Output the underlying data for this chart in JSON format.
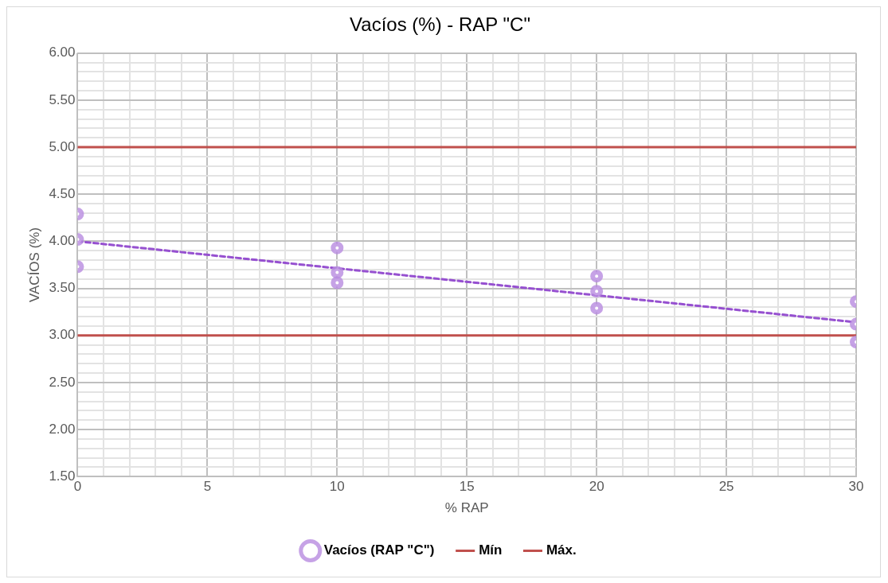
{
  "chart_data": {
    "type": "scatter",
    "title": "Vacíos (%) - RAP \"C\"",
    "xlabel": "% RAP",
    "ylabel": "VACÍOS (%)",
    "xlim": [
      0,
      30
    ],
    "ylim": [
      1.5,
      6
    ],
    "xticks": [
      0,
      {
        "value": 1,
        "label": null
      },
      {
        "value": 2,
        "label": null
      },
      {
        "value": 3,
        "label": null
      },
      {
        "value": 4,
        "label": null
      },
      5,
      {
        "value": 6,
        "label": null
      },
      {
        "value": 7,
        "label": null
      },
      {
        "value": 8,
        "label": null
      },
      {
        "value": 9,
        "label": null
      },
      10,
      {
        "value": 11,
        "label": null
      },
      {
        "value": 12,
        "label": null
      },
      {
        "value": 13,
        "label": null
      },
      {
        "value": 14,
        "label": null
      },
      15,
      {
        "value": 16,
        "label": null
      },
      {
        "value": 17,
        "label": null
      },
      {
        "value": 18,
        "label": null
      },
      {
        "value": 19,
        "label": null
      },
      20,
      {
        "value": 21,
        "label": null
      },
      {
        "value": 22,
        "label": null
      },
      {
        "value": 23,
        "label": null
      },
      {
        "value": 24,
        "label": null
      },
      25,
      {
        "value": 26,
        "label": null
      },
      {
        "value": 27,
        "label": null
      },
      {
        "value": 28,
        "label": null
      },
      {
        "value": 29,
        "label": null
      },
      30
    ],
    "yticks": [
      {
        "value": 1.5,
        "label": "1.50"
      },
      {
        "value": 1.6,
        "label": null
      },
      {
        "value": 1.7,
        "label": null
      },
      {
        "value": 1.8,
        "label": null
      },
      {
        "value": 1.9,
        "label": null
      },
      {
        "value": 2,
        "label": "2.00"
      },
      {
        "value": 2.1,
        "label": null
      },
      {
        "value": 2.2,
        "label": null
      },
      {
        "value": 2.3,
        "label": null
      },
      {
        "value": 2.4,
        "label": null
      },
      {
        "value": 2.5,
        "label": "2.50"
      },
      {
        "value": 2.6,
        "label": null
      },
      {
        "value": 2.7,
        "label": null
      },
      {
        "value": 2.8,
        "label": null
      },
      {
        "value": 2.9,
        "label": null
      },
      {
        "value": 3,
        "label": "3.00"
      },
      {
        "value": 3.1,
        "label": null
      },
      {
        "value": 3.2,
        "label": null
      },
      {
        "value": 3.3,
        "label": null
      },
      {
        "value": 3.4,
        "label": null
      },
      {
        "value": 3.5,
        "label": "3.50"
      },
      {
        "value": 3.6,
        "label": null
      },
      {
        "value": 3.7,
        "label": null
      },
      {
        "value": 3.8,
        "label": null
      },
      {
        "value": 3.9,
        "label": null
      },
      {
        "value": 4,
        "label": "4.00"
      },
      {
        "value": 4.1,
        "label": null
      },
      {
        "value": 4.2,
        "label": null
      },
      {
        "value": 4.3,
        "label": null
      },
      {
        "value": 4.4,
        "label": null
      },
      {
        "value": 4.5,
        "label": "4.50"
      },
      {
        "value": 4.6,
        "label": null
      },
      {
        "value": 4.7,
        "label": null
      },
      {
        "value": 4.8,
        "label": null
      },
      {
        "value": 4.9,
        "label": null
      },
      {
        "value": 5,
        "label": "5.00"
      },
      {
        "value": 5.1,
        "label": null
      },
      {
        "value": 5.2,
        "label": null
      },
      {
        "value": 5.3,
        "label": null
      },
      {
        "value": 5.4,
        "label": null
      },
      {
        "value": 5.5,
        "label": "5.50"
      },
      {
        "value": 5.6,
        "label": null
      },
      {
        "value": 5.7,
        "label": null
      },
      {
        "value": 5.8,
        "label": null
      },
      {
        "value": 5.9,
        "label": null
      },
      {
        "value": 6,
        "label": "6.00"
      }
    ],
    "grid": true,
    "legend": "bottom",
    "marker": "circle",
    "series": [
      {
        "name": "Vacíos (RAP \"C\")",
        "color": "#b88be0",
        "x": [
          0,
          0,
          0,
          10,
          10,
          10,
          20,
          20,
          20,
          30,
          30,
          30
        ],
        "values": [
          4.29,
          4.02,
          3.73,
          3.93,
          3.67,
          3.56,
          3.63,
          3.47,
          3.29,
          3.36,
          3.12,
          2.93
        ]
      },
      {
        "name": "Mín",
        "type": "line",
        "color": "#c0504d",
        "line_style": "solid",
        "marker": "none",
        "x": [
          0,
          30
        ],
        "values": [
          3,
          3
        ]
      },
      {
        "name": "Máx.",
        "type": "line",
        "color": "#c0504d",
        "line_style": "solid",
        "marker": "none",
        "x": [
          0,
          30
        ],
        "values": [
          5,
          5
        ]
      },
      {
        "type": "line",
        "color": "#9650d0",
        "line_style": "dashed",
        "marker": "none",
        "x": [
          0,
          30
        ],
        "values": [
          4.0,
          3.14
        ]
      }
    ]
  }
}
